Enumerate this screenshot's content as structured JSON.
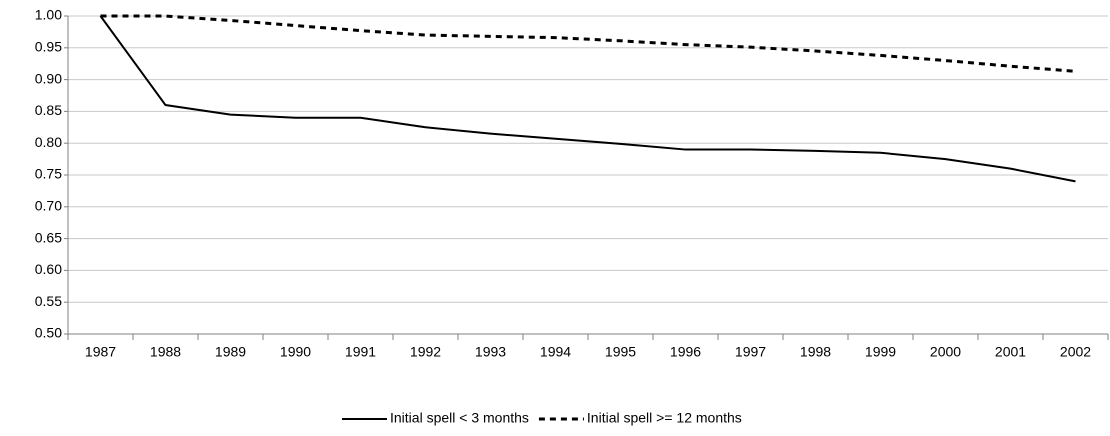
{
  "chart_data": {
    "type": "line",
    "categories": [
      "1987",
      "1988",
      "1989",
      "1990",
      "1991",
      "1992",
      "1993",
      "1994",
      "1995",
      "1996",
      "1997",
      "1998",
      "1999",
      "2000",
      "2001",
      "2002"
    ],
    "series": [
      {
        "name": "Initial spell < 3 months",
        "color": "#000000",
        "line_style": "solid",
        "values": [
          1.0,
          0.86,
          0.845,
          0.84,
          0.84,
          0.825,
          0.815,
          0.807,
          0.799,
          0.79,
          0.79,
          0.788,
          0.785,
          0.775,
          0.76,
          0.74
        ]
      },
      {
        "name": "Initial spell >= 12 months",
        "color": "#000000",
        "line_style": "dashed",
        "values": [
          1.0,
          1.0,
          0.993,
          0.985,
          0.977,
          0.97,
          0.968,
          0.966,
          0.961,
          0.955,
          0.951,
          0.945,
          0.938,
          0.93,
          0.921,
          0.913
        ]
      }
    ],
    "ylim": [
      0.5,
      1.0
    ],
    "yticks": [
      {
        "value": 0.5,
        "label": "0.50"
      },
      {
        "value": 0.55,
        "label": "0.55"
      },
      {
        "value": 0.6,
        "label": "0.60"
      },
      {
        "value": 0.65,
        "label": "0.65"
      },
      {
        "value": 0.7,
        "label": "0.70"
      },
      {
        "value": 0.75,
        "label": "0.75"
      },
      {
        "value": 0.8,
        "label": "0.80"
      },
      {
        "value": 0.85,
        "label": "0.85"
      },
      {
        "value": 0.9,
        "label": "0.90"
      },
      {
        "value": 0.95,
        "label": "0.95"
      },
      {
        "value": 1.0,
        "label": "1.00"
      }
    ],
    "grid": true,
    "legend": "bottom"
  }
}
